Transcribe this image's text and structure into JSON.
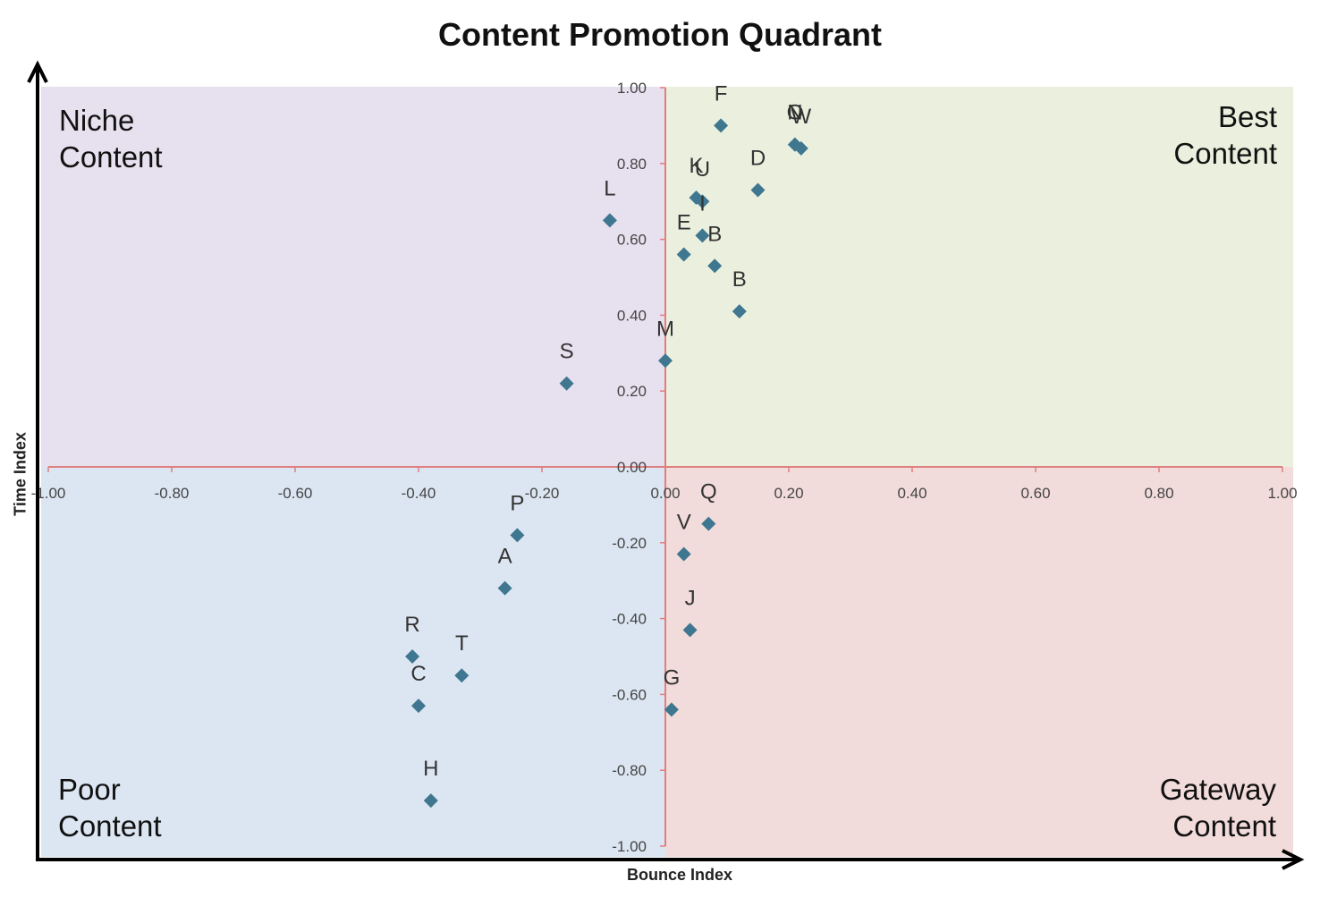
{
  "chart_data": {
    "type": "scatter",
    "title": "Content Promotion Quadrant",
    "xlabel": "Bounce Index",
    "ylabel": "Time Index",
    "xlim": [
      -1.0,
      1.0
    ],
    "ylim": [
      -1.0,
      1.0
    ],
    "x_ticks": [
      "-1.00",
      "-0.80",
      "-0.60",
      "-0.40",
      "-0.20",
      "0.00",
      "0.20",
      "0.40",
      "0.60",
      "0.80",
      "1.00"
    ],
    "y_ticks": [
      "-1.00",
      "-0.80",
      "-0.60",
      "-0.40",
      "-0.20",
      "0.00",
      "0.20",
      "0.40",
      "0.60",
      "0.80",
      "1.00"
    ],
    "grid": false,
    "quadrants": {
      "top_left": "Niche\nContent",
      "top_right": "Best\nContent",
      "bottom_left": "Poor\nContent",
      "bottom_right": "Gateway\nContent"
    },
    "colors": {
      "top_left": "#e7e0ee",
      "top_right": "#ebf0de",
      "bottom_left": "#dce6f2",
      "bottom_right": "#f2dcdb",
      "marker": "#3f7690",
      "axis_line": "#e07f7f"
    },
    "points": [
      {
        "label": "F",
        "x": 0.09,
        "y": 0.9
      },
      {
        "label": "N",
        "x": 0.21,
        "y": 0.85
      },
      {
        "label": "W",
        "x": 0.22,
        "y": 0.84
      },
      {
        "label": "O",
        "x": 0.21,
        "y": 0.85
      },
      {
        "label": "D",
        "x": 0.15,
        "y": 0.73
      },
      {
        "label": "K",
        "x": 0.05,
        "y": 0.71
      },
      {
        "label": "U",
        "x": 0.06,
        "y": 0.7
      },
      {
        "label": "L",
        "x": -0.09,
        "y": 0.65
      },
      {
        "label": "E",
        "x": 0.03,
        "y": 0.56
      },
      {
        "label": "I",
        "x": 0.06,
        "y": 0.61
      },
      {
        "label": "B",
        "x": 0.08,
        "y": 0.53
      },
      {
        "label": "B",
        "x": 0.12,
        "y": 0.41
      },
      {
        "label": "M",
        "x": 0.0,
        "y": 0.28
      },
      {
        "label": "S",
        "x": -0.16,
        "y": 0.22
      },
      {
        "label": "Q",
        "x": 0.07,
        "y": -0.15
      },
      {
        "label": "V",
        "x": 0.03,
        "y": -0.23
      },
      {
        "label": "P",
        "x": -0.24,
        "y": -0.18
      },
      {
        "label": "A",
        "x": -0.26,
        "y": -0.32
      },
      {
        "label": "J",
        "x": 0.04,
        "y": -0.43
      },
      {
        "label": "R",
        "x": -0.41,
        "y": -0.5
      },
      {
        "label": "T",
        "x": -0.33,
        "y": -0.55
      },
      {
        "label": "C",
        "x": -0.4,
        "y": -0.63
      },
      {
        "label": "G",
        "x": 0.01,
        "y": -0.64
      },
      {
        "label": "H",
        "x": -0.38,
        "y": -0.88
      }
    ]
  }
}
